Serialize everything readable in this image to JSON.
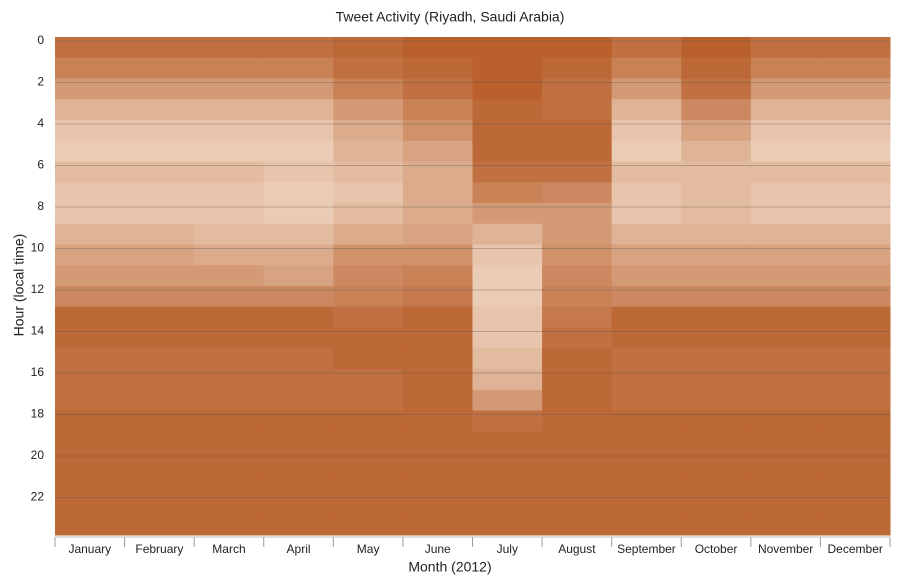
{
  "chart_data": {
    "type": "heatmap",
    "title": "Tweet Activity (Riyadh, Saudi Arabia)",
    "x_label": "Month (2012)",
    "y_label": "Hour (local time)",
    "categories": [
      "January",
      "February",
      "March",
      "April",
      "May",
      "June",
      "July",
      "August",
      "September",
      "October",
      "November",
      "December"
    ],
    "ylim": [
      0,
      24
    ],
    "yticks": [
      0,
      2,
      4,
      6,
      8,
      10,
      12,
      14,
      16,
      18,
      20,
      22
    ],
    "vlim": [
      0,
      1
    ],
    "colormap": [
      "#fdf6ea",
      "#b24f17"
    ],
    "grid": true,
    "values": [
      [
        0.8,
        0.7,
        0.55,
        0.4,
        0.3,
        0.25,
        0.35,
        0.3,
        0.3,
        0.4,
        0.5,
        0.55,
        0.65,
        0.85,
        0.85,
        0.8,
        0.8,
        0.8,
        0.85,
        0.85,
        0.85,
        0.85,
        0.85,
        0.85
      ],
      [
        0.8,
        0.7,
        0.55,
        0.4,
        0.3,
        0.25,
        0.35,
        0.3,
        0.3,
        0.4,
        0.5,
        0.55,
        0.65,
        0.85,
        0.85,
        0.8,
        0.8,
        0.8,
        0.85,
        0.85,
        0.85,
        0.85,
        0.85,
        0.85
      ],
      [
        0.8,
        0.7,
        0.55,
        0.4,
        0.3,
        0.25,
        0.35,
        0.3,
        0.3,
        0.35,
        0.45,
        0.55,
        0.65,
        0.85,
        0.85,
        0.8,
        0.8,
        0.8,
        0.85,
        0.85,
        0.85,
        0.85,
        0.85,
        0.85
      ],
      [
        0.8,
        0.7,
        0.55,
        0.4,
        0.3,
        0.25,
        0.3,
        0.25,
        0.25,
        0.35,
        0.45,
        0.5,
        0.65,
        0.85,
        0.85,
        0.8,
        0.8,
        0.8,
        0.85,
        0.85,
        0.85,
        0.85,
        0.85,
        0.85
      ],
      [
        0.85,
        0.8,
        0.7,
        0.55,
        0.45,
        0.4,
        0.35,
        0.3,
        0.35,
        0.45,
        0.6,
        0.65,
        0.7,
        0.8,
        0.85,
        0.85,
        0.8,
        0.8,
        0.85,
        0.85,
        0.85,
        0.85,
        0.85,
        0.85
      ],
      [
        0.9,
        0.85,
        0.8,
        0.7,
        0.6,
        0.5,
        0.45,
        0.45,
        0.45,
        0.5,
        0.6,
        0.7,
        0.75,
        0.85,
        0.85,
        0.85,
        0.85,
        0.85,
        0.85,
        0.85,
        0.85,
        0.85,
        0.85,
        0.85
      ],
      [
        0.9,
        0.9,
        0.9,
        0.85,
        0.85,
        0.85,
        0.8,
        0.7,
        0.55,
        0.4,
        0.3,
        0.25,
        0.25,
        0.3,
        0.3,
        0.35,
        0.4,
        0.55,
        0.8,
        0.85,
        0.85,
        0.85,
        0.85,
        0.85
      ],
      [
        0.9,
        0.85,
        0.8,
        0.8,
        0.85,
        0.85,
        0.8,
        0.65,
        0.55,
        0.55,
        0.6,
        0.65,
        0.7,
        0.75,
        0.8,
        0.85,
        0.85,
        0.85,
        0.85,
        0.85,
        0.85,
        0.85,
        0.85,
        0.85
      ],
      [
        0.8,
        0.7,
        0.55,
        0.4,
        0.3,
        0.25,
        0.35,
        0.3,
        0.3,
        0.4,
        0.5,
        0.55,
        0.65,
        0.85,
        0.85,
        0.8,
        0.8,
        0.8,
        0.85,
        0.85,
        0.85,
        0.85,
        0.85,
        0.85
      ],
      [
        0.9,
        0.85,
        0.8,
        0.65,
        0.5,
        0.4,
        0.35,
        0.35,
        0.35,
        0.4,
        0.5,
        0.55,
        0.65,
        0.85,
        0.85,
        0.8,
        0.8,
        0.8,
        0.85,
        0.85,
        0.85,
        0.85,
        0.85,
        0.85
      ],
      [
        0.8,
        0.7,
        0.55,
        0.4,
        0.3,
        0.25,
        0.35,
        0.3,
        0.3,
        0.4,
        0.5,
        0.55,
        0.65,
        0.85,
        0.85,
        0.8,
        0.8,
        0.8,
        0.85,
        0.85,
        0.85,
        0.85,
        0.85,
        0.85
      ],
      [
        0.8,
        0.7,
        0.55,
        0.4,
        0.3,
        0.25,
        0.35,
        0.3,
        0.3,
        0.4,
        0.5,
        0.55,
        0.65,
        0.85,
        0.85,
        0.8,
        0.8,
        0.8,
        0.85,
        0.85,
        0.85,
        0.85,
        0.85,
        0.85
      ]
    ]
  }
}
